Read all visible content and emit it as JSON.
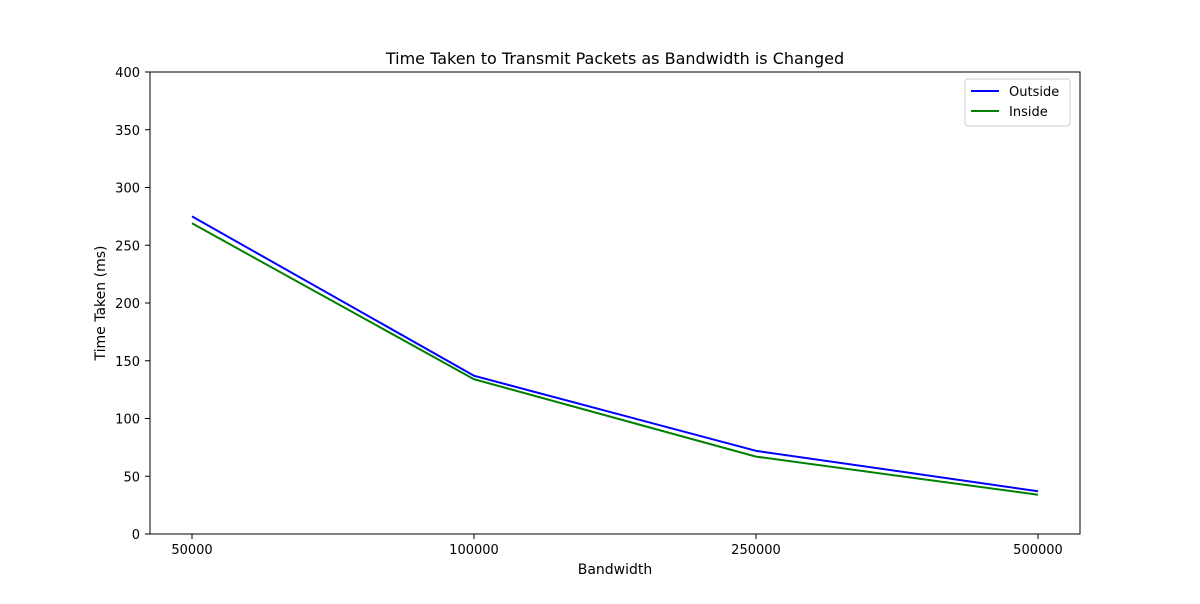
{
  "chart_data": {
    "type": "line",
    "title": "Time Taken to Transmit Packets as Bandwidth is Changed",
    "xlabel": "Bandwidth",
    "ylabel": "Time Taken (ms)",
    "categories": [
      "50000",
      "100000",
      "250000",
      "500000"
    ],
    "x_scale": "categorical",
    "yticks": [
      "0",
      "50",
      "100",
      "150",
      "200",
      "250",
      "300",
      "350",
      "400"
    ],
    "ylim": [
      0,
      400
    ],
    "grid": false,
    "legend_position": "top-right",
    "series": [
      {
        "name": "Outside",
        "color": "#0000ff",
        "values": [
          275,
          137,
          72,
          37
        ]
      },
      {
        "name": "Inside",
        "color": "#008000",
        "values": [
          269,
          134,
          67,
          34
        ]
      }
    ]
  }
}
